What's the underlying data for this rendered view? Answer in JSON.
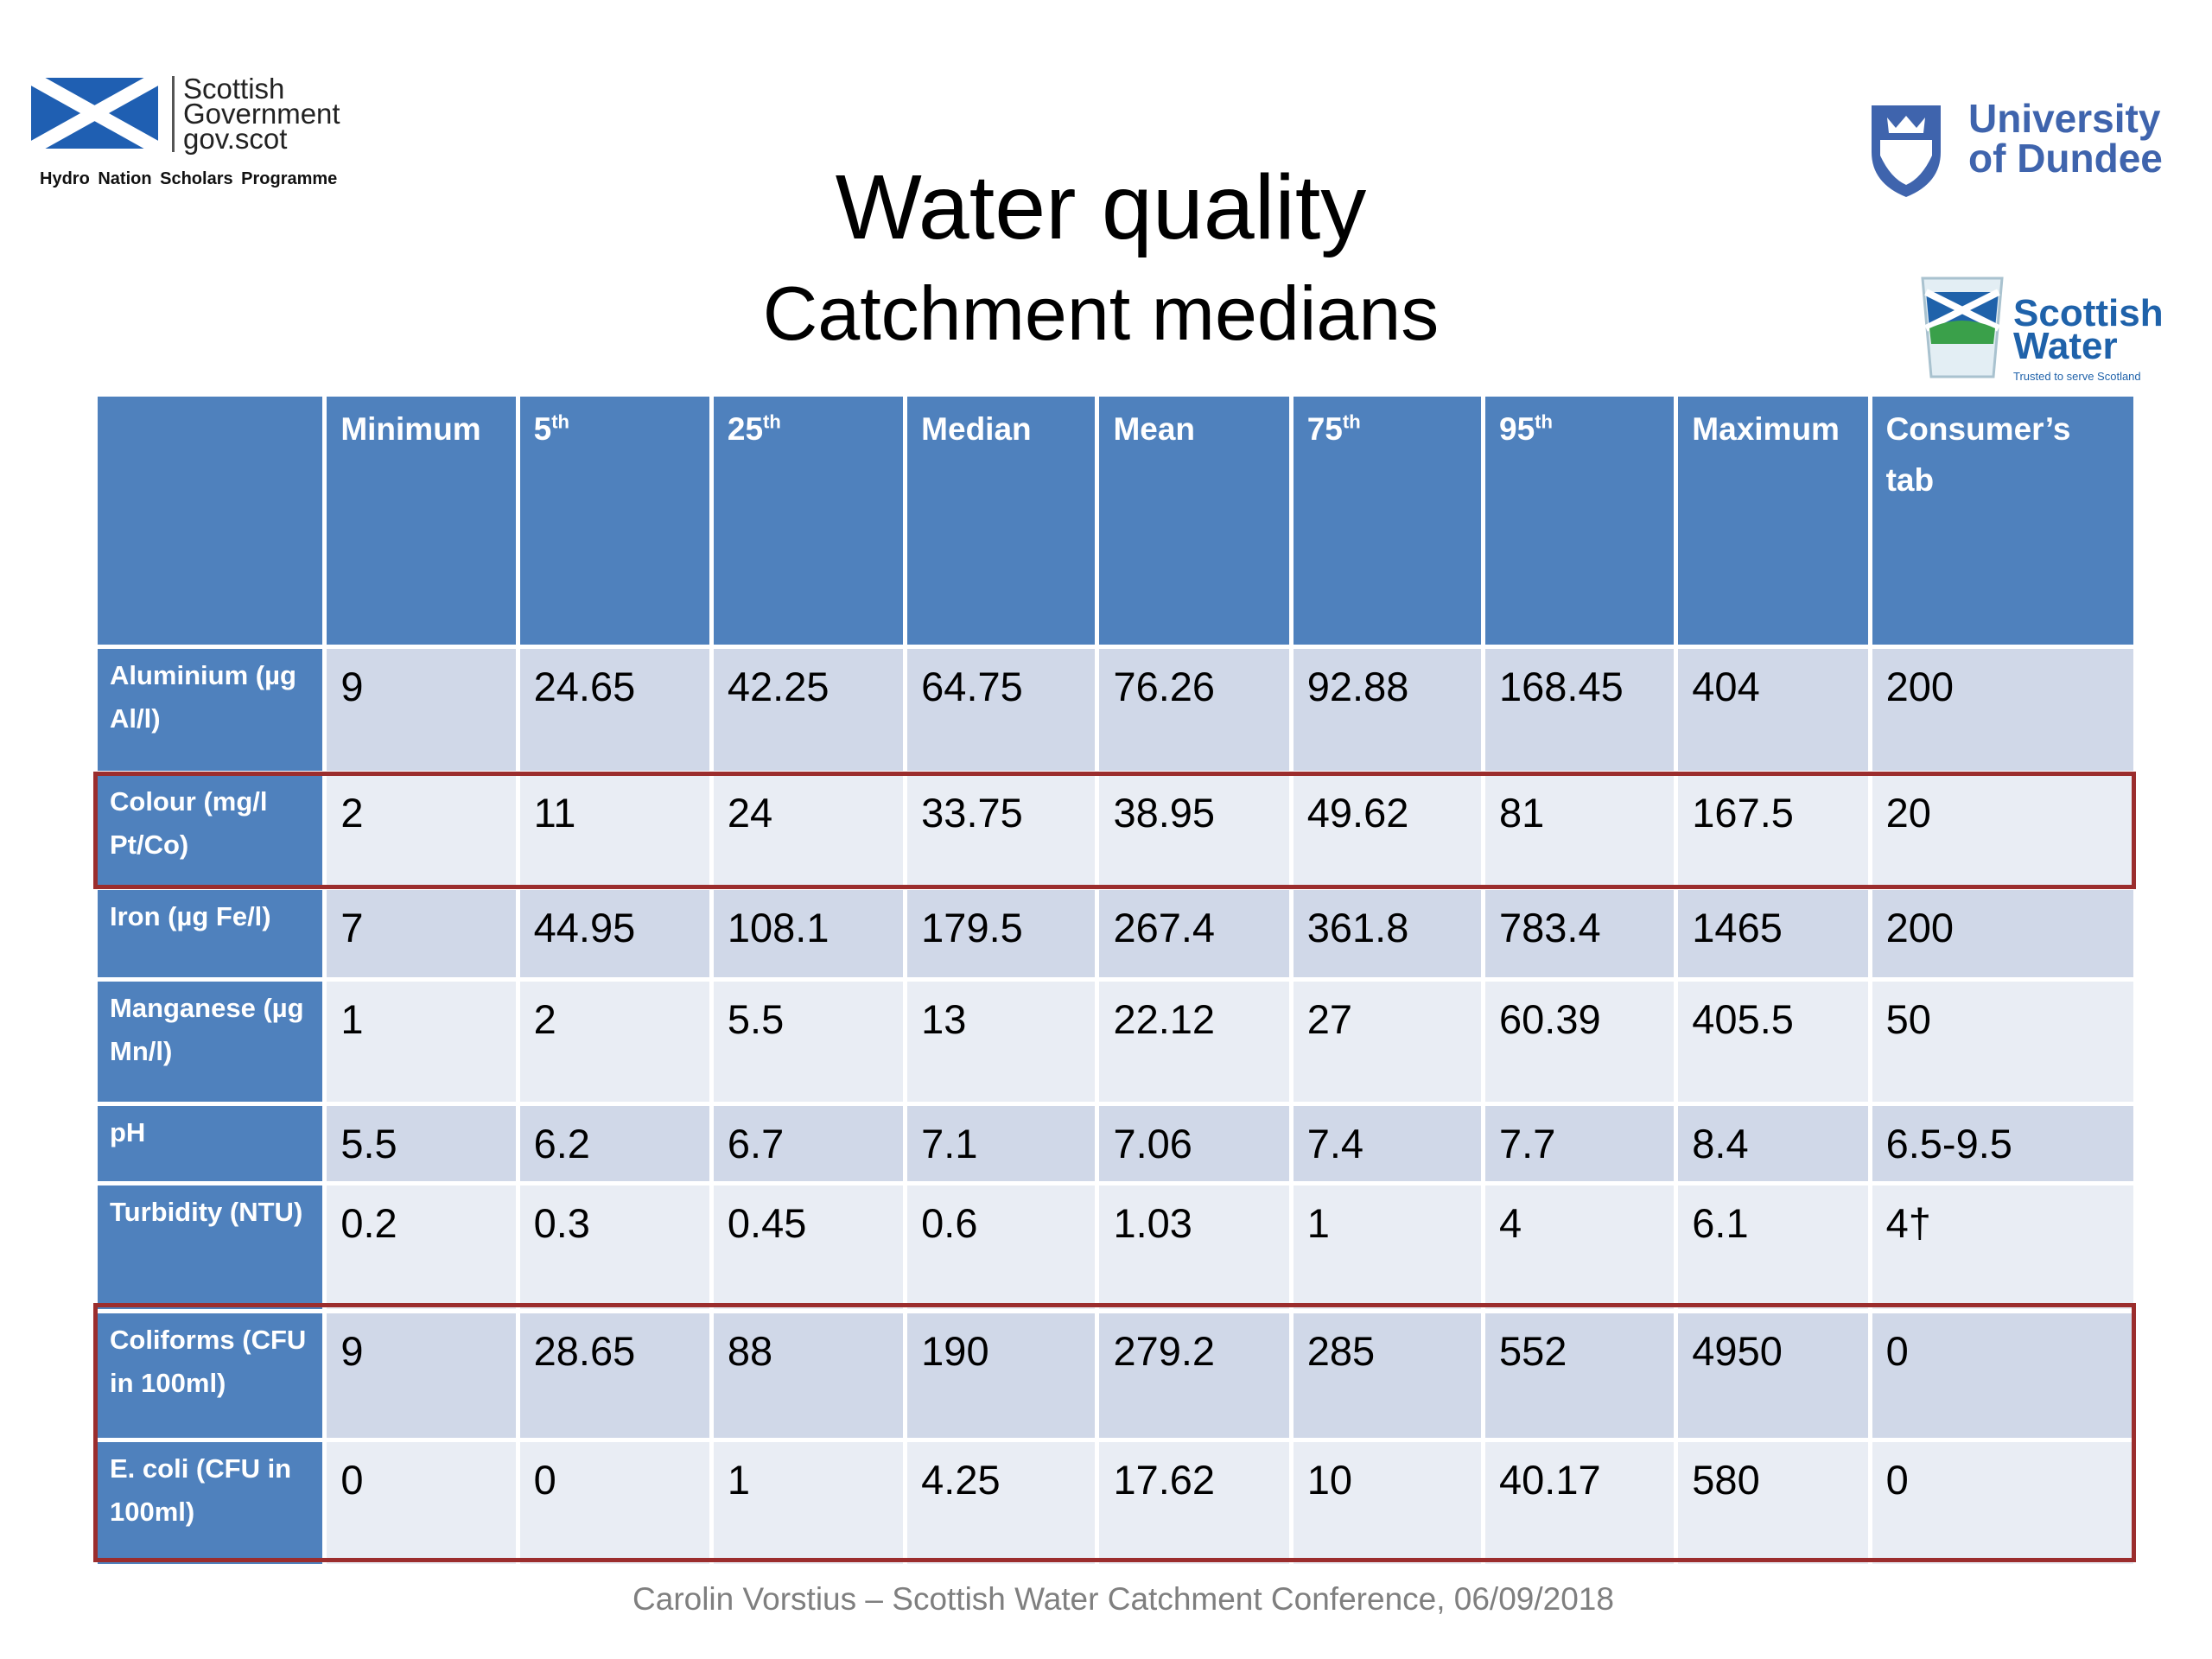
{
  "logos": {
    "scottish_government": {
      "lines": [
        "Scottish",
        "Government",
        "gov.scot"
      ],
      "tagline": "Hydro Nation Scholars Programme"
    },
    "university": {
      "lines": [
        "University",
        "of Dundee"
      ]
    },
    "scottish_water": {
      "lines": [
        "Scottish",
        "Water"
      ],
      "tagline": "Trusted to serve Scotland"
    }
  },
  "title": "Water quality",
  "subtitle": "Catchment medians",
  "table": {
    "columns": [
      "Minimum",
      {
        "text": "5",
        "sup": "th"
      },
      {
        "text": "25",
        "sup": "th"
      },
      "Median",
      "Mean",
      {
        "text": "75",
        "sup": "th"
      },
      {
        "text": "95",
        "sup": "th"
      },
      "Maximum",
      "Consumer’s tab"
    ],
    "rows": [
      {
        "label": "Aluminium (µg Al/l)",
        "cells": [
          9,
          24.65,
          42.25,
          64.75,
          76.26,
          92.88,
          168.45,
          404,
          200
        ]
      },
      {
        "label": "Colour (mg/l Pt/Co)",
        "cells": [
          2,
          11,
          24,
          33.75,
          38.95,
          49.62,
          81,
          167.5,
          20
        ]
      },
      {
        "label": "Iron (µg Fe/l)",
        "cells": [
          7,
          44.95,
          108.1,
          179.5,
          267.4,
          361.8,
          783.4,
          1465,
          200
        ]
      },
      {
        "label": "Manganese (µg Mn/l)",
        "cells": [
          1,
          2,
          5.5,
          13,
          22.12,
          27,
          60.39,
          405.5,
          50
        ]
      },
      {
        "label": "pH",
        "cells": [
          5.5,
          6.2,
          6.7,
          7.1,
          7.06,
          7.4,
          7.7,
          8.4,
          "6.5-9.5"
        ]
      },
      {
        "label": "Turbidity (NTU)",
        "cells": [
          0.2,
          0.3,
          0.45,
          0.6,
          1.03,
          1,
          4,
          6.1,
          "4†"
        ]
      },
      {
        "label": "Coliforms (CFU in 100ml)",
        "cells": [
          9,
          28.65,
          88,
          190,
          279.2,
          285,
          552,
          4950,
          0
        ]
      },
      {
        "label": "E. coli (CFU in 100ml)",
        "cells": [
          0,
          0,
          1,
          4.25,
          17.62,
          10,
          40.17,
          580,
          0
        ]
      }
    ]
  },
  "footer": "Carolin Vorstius – Scottish Water Catchment Conference, 06/09/2018"
}
